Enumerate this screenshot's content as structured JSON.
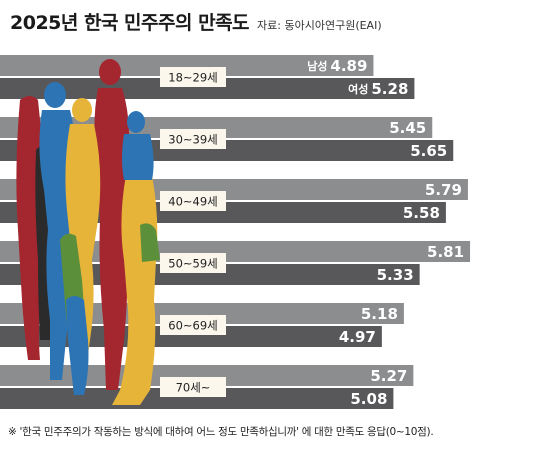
{
  "title": "2025년 한국 민주주의 만족도",
  "source": "자료: 동아시아연구원(EAI)",
  "footnote": "※ '한국 민주주의가 작동하는 방식에 대하여 어느 정도 만족하십니까' 에 대한 만족도 응답(0~10점).",
  "colors": {
    "bar_male": "#8c8d8f",
    "bar_female": "#58585a",
    "label_box": "#fbf7ec",
    "bar_text": "#ffffff",
    "figure_red": "#a4262f",
    "figure_blue": "#2d74b5",
    "figure_yellow": "#e7b43a",
    "figure_green": "#5c8f3a",
    "figure_dark": "#2b2b2b"
  },
  "chart_data": {
    "type": "bar",
    "orientation": "horizontal",
    "categories": [
      "18~29세",
      "30~39세",
      "40~49세",
      "50~59세",
      "60~69세",
      "70세~"
    ],
    "series": [
      {
        "name": "남성",
        "values": [
          4.89,
          5.45,
          5.79,
          5.81,
          5.18,
          5.27
        ]
      },
      {
        "name": "여성",
        "values": [
          5.28,
          5.65,
          5.58,
          5.33,
          4.97,
          5.08
        ]
      }
    ],
    "xlim": [
      0,
      6
    ]
  }
}
